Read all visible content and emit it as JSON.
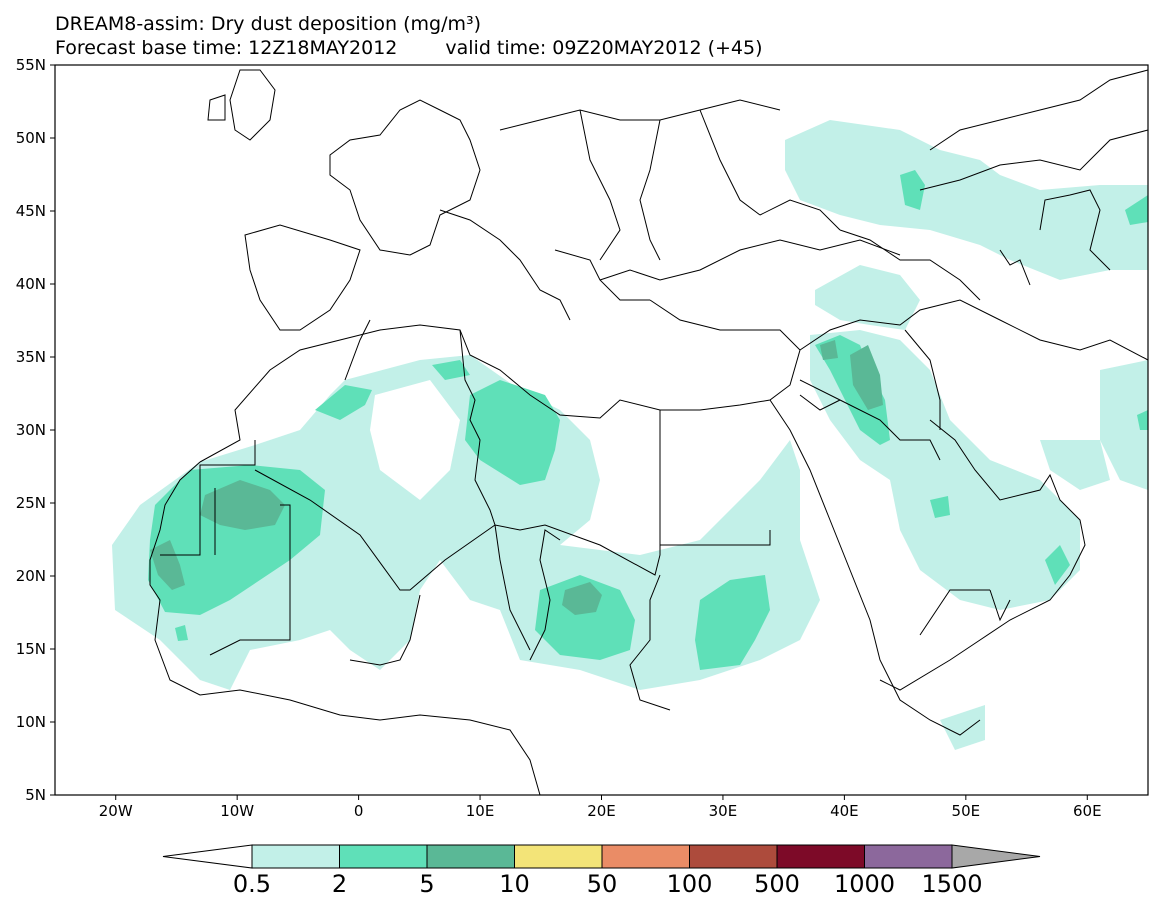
{
  "header": {
    "title_line1": "DREAM8-assim: Dry dust deposition (mg/m³)",
    "forecast_base": "Forecast base time: 12Z18MAY2012",
    "valid_time": "valid time: 09Z20MAY2012 (+45)"
  },
  "map": {
    "lon_range": [
      -25,
      65
    ],
    "lat_range": [
      5,
      55
    ],
    "lat_ticks": [
      {
        "value": 55,
        "label": "55N"
      },
      {
        "value": 50,
        "label": "50N"
      },
      {
        "value": 45,
        "label": "45N"
      },
      {
        "value": 40,
        "label": "40N"
      },
      {
        "value": 35,
        "label": "35N"
      },
      {
        "value": 30,
        "label": "30N"
      },
      {
        "value": 25,
        "label": "25N"
      },
      {
        "value": 20,
        "label": "20N"
      },
      {
        "value": 15,
        "label": "15N"
      },
      {
        "value": 10,
        "label": "10N"
      },
      {
        "value": 5,
        "label": "5N"
      }
    ],
    "lon_ticks": [
      {
        "value": -20,
        "label": "20W"
      },
      {
        "value": -10,
        "label": "10W"
      },
      {
        "value": 0,
        "label": "0"
      },
      {
        "value": 10,
        "label": "10E"
      },
      {
        "value": 20,
        "label": "20E"
      },
      {
        "value": 30,
        "label": "30E"
      },
      {
        "value": 40,
        "label": "40E"
      },
      {
        "value": 50,
        "label": "50E"
      },
      {
        "value": 60,
        "label": "60E"
      }
    ]
  },
  "colorbar": {
    "bins": [
      {
        "color": "#c2f0e8"
      },
      {
        "color": "#5fe0b8"
      },
      {
        "color": "#5ab896"
      },
      {
        "color": "#f3e478"
      },
      {
        "color": "#ea8c66"
      },
      {
        "color": "#ad4b3c"
      },
      {
        "color": "#7d0a28"
      },
      {
        "color": "#8c689c"
      }
    ],
    "under_color": "#ffffff",
    "over_color": "#a8a8a8",
    "labels": [
      "0.5",
      "2",
      "5",
      "10",
      "50",
      "100",
      "500",
      "1000",
      "1500"
    ]
  }
}
